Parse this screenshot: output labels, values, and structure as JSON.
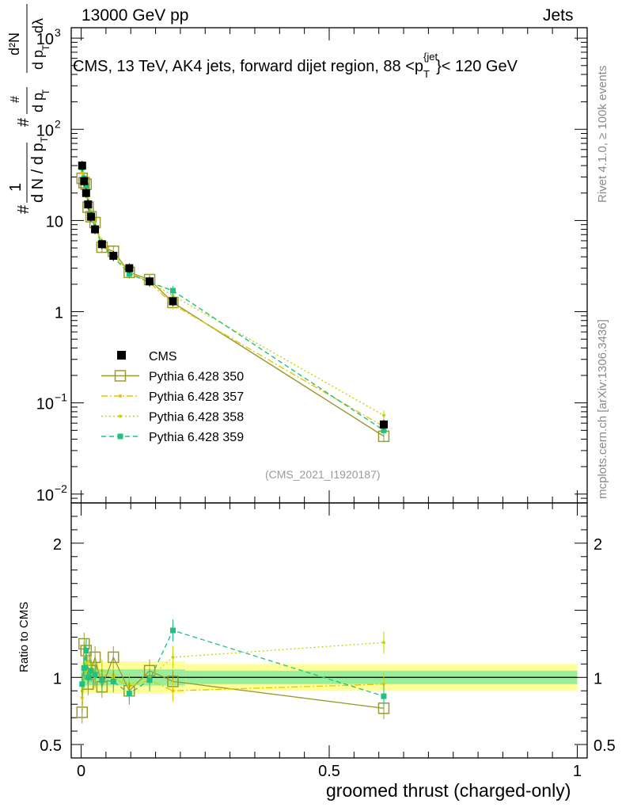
{
  "header": {
    "energy_label": "13000 GeV pp",
    "category_label": "Jets"
  },
  "side_labels": {
    "rivet": "Rivet 4.1.0, ≥ 100k events",
    "mcplots": "mcplots.cern.ch [arXiv:1306.3436]"
  },
  "analysis_id": "(CMS_2021_I1920187)",
  "chart_data": [
    {
      "panel": "main",
      "type": "line",
      "scale": "log",
      "title": "CMS, 13 TeV, AK4 jets, forward dijet region, 88 <p_T^{jet}< 120 GeV",
      "title_parts": {
        "prefix": "CMS, 13 TeV, AK4 jets, forward dijet region, 88 <p",
        "sub": "T",
        "sup": "{jet",
        "suffix": "}< 120 GeV"
      },
      "ylabel": "1/dN/dp_T # d²N/dp_T dλ #",
      "ylabel_parts": {
        "hash": "#",
        "one": "1",
        "dN": "d N / d p",
        "T": "T",
        "d2N": "d²N",
        "dp": "d p",
        "dlambda": "dλ"
      },
      "ylim": [
        0.008,
        1300
      ],
      "yticks": [
        {
          "value": 0.01,
          "base": "10",
          "exp": "−2"
        },
        {
          "value": 0.1,
          "base": "10",
          "exp": "−1"
        },
        {
          "value": 1,
          "base": "1",
          "exp": ""
        },
        {
          "value": 10,
          "base": "10",
          "exp": ""
        },
        {
          "value": 100,
          "base": "10",
          "exp": "2"
        },
        {
          "value": 1000,
          "base": "10",
          "exp": "3"
        }
      ],
      "legend_position": "middle-left",
      "series": [
        {
          "name": "CMS",
          "color": "#000000",
          "marker": "filled-square",
          "x": [
            0.002,
            0.006,
            0.01,
            0.014,
            0.02,
            0.028,
            0.042,
            0.065,
            0.097,
            0.138,
            0.185,
            0.61
          ],
          "y": [
            40,
            27,
            20,
            15,
            11,
            8,
            5.5,
            4.1,
            3.0,
            2.15,
            1.3,
            0.058
          ]
        },
        {
          "name": "Pythia 6.428 350",
          "color": "#9a9a30",
          "marker": "open-square",
          "dash": "solid",
          "x": [
            0.002,
            0.006,
            0.01,
            0.014,
            0.02,
            0.028,
            0.042,
            0.065,
            0.097,
            0.138,
            0.185,
            0.61
          ],
          "y": [
            29,
            26,
            25,
            14,
            11,
            9.5,
            5.1,
            4.6,
            2.7,
            2.25,
            1.26,
            0.043
          ]
        },
        {
          "name": "Pythia 6.428 357",
          "color": "#e8c400",
          "marker": "small-dot",
          "dash": "dashdot",
          "x": [
            0.002,
            0.006,
            0.01,
            0.014,
            0.02,
            0.028,
            0.042,
            0.065,
            0.097,
            0.138,
            0.185,
            0.61
          ],
          "y": [
            34,
            27,
            23,
            16,
            12,
            9,
            5.6,
            4.3,
            2.7,
            2.1,
            1.2,
            0.055
          ]
        },
        {
          "name": "Pythia 6.428 358",
          "color": "#c8d400",
          "marker": "small-dot",
          "dash": "dotted",
          "x": [
            0.002,
            0.006,
            0.01,
            0.014,
            0.02,
            0.028,
            0.042,
            0.065,
            0.097,
            0.138,
            0.185,
            0.61
          ],
          "y": [
            36,
            30,
            22,
            17,
            12,
            8.5,
            5.8,
            4.2,
            2.7,
            2.1,
            1.5,
            0.073
          ]
        },
        {
          "name": "Pythia 6.428 359",
          "color": "#20c080",
          "marker": "small-square",
          "dash": "dashed",
          "x": [
            0.002,
            0.006,
            0.01,
            0.014,
            0.02,
            0.028,
            0.042,
            0.065,
            0.097,
            0.138,
            0.185,
            0.61
          ],
          "y": [
            38,
            29,
            24,
            15,
            11.5,
            8.2,
            5.4,
            4.0,
            2.6,
            2.1,
            1.7,
            0.05
          ]
        }
      ]
    },
    {
      "panel": "ratio",
      "type": "line",
      "ylabel": "Ratio to CMS",
      "xlabel": "groomed thrust (charged-only)",
      "xlim": [
        -0.02,
        1.02
      ],
      "ylim": [
        0.4,
        2.3
      ],
      "xticks": [
        "0",
        "0.5",
        "1"
      ],
      "yticks": [
        "0.5",
        "1",
        "2"
      ],
      "bands": [
        {
          "x_from": 0.0,
          "x_to": 0.21,
          "inner": 0.06,
          "outer": 0.12
        },
        {
          "x_from": 0.21,
          "x_to": 1.0,
          "inner": 0.05,
          "outer": 0.1
        }
      ],
      "series": [
        {
          "name": "Pythia 6.428 350",
          "x": [
            0.002,
            0.006,
            0.01,
            0.014,
            0.02,
            0.028,
            0.042,
            0.065,
            0.097,
            0.138,
            0.185,
            0.61
          ],
          "y": [
            0.74,
            1.25,
            1.2,
            0.95,
            1.05,
            1.15,
            0.93,
            1.15,
            0.9,
            1.05,
            0.97,
            0.77
          ]
        },
        {
          "name": "Pythia 6.428 357",
          "x": [
            0.002,
            0.006,
            0.01,
            0.014,
            0.02,
            0.028,
            0.042,
            0.065,
            0.097,
            0.138,
            0.185,
            0.61
          ],
          "y": [
            0.85,
            1.0,
            1.15,
            1.05,
            1.1,
            1.0,
            1.02,
            1.0,
            0.93,
            0.98,
            0.9,
            0.95
          ]
        },
        {
          "name": "Pythia 6.428 358",
          "x": [
            0.002,
            0.006,
            0.01,
            0.014,
            0.02,
            0.028,
            0.042,
            0.065,
            0.097,
            0.138,
            0.185,
            0.61
          ],
          "y": [
            0.9,
            1.1,
            1.1,
            1.12,
            1.05,
            1.05,
            1.05,
            1.02,
            0.95,
            1.0,
            1.15,
            1.26
          ]
        },
        {
          "name": "Pythia 6.428 359",
          "x": [
            0.002,
            0.006,
            0.01,
            0.014,
            0.02,
            0.028,
            0.042,
            0.065,
            0.097,
            0.138,
            0.185,
            0.61
          ],
          "y": [
            0.95,
            1.07,
            1.2,
            1.0,
            1.05,
            1.02,
            0.98,
            0.97,
            0.88,
            0.98,
            1.35,
            0.86
          ]
        }
      ]
    }
  ]
}
